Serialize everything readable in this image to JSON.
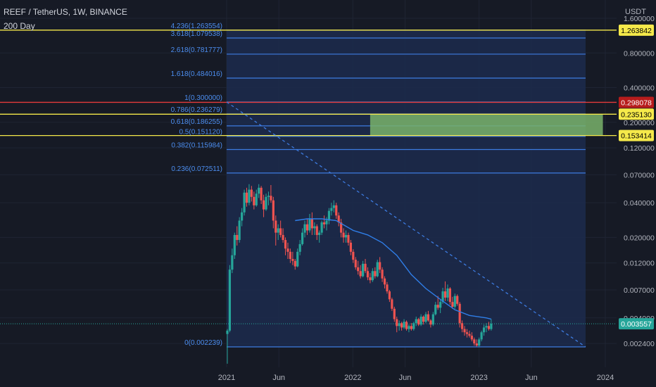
{
  "header": {
    "symbol_line": "REEF / TetherUS, 1W, BINANCE",
    "indicator_line": "200 Day"
  },
  "colors": {
    "background": "#161a25",
    "up": "#26a69a",
    "down": "#ef5350",
    "ma": "#2f7ee8",
    "fib_line": "#3d7be0",
    "fib_label": "#4c8ef0",
    "fib_fill": "#1c2c4e",
    "yellow": "#f5e94a",
    "red_line": "#e53b3b",
    "zone_fill": "#79b36b",
    "last_price_badge": "#26a69a",
    "axis_text": "#b2b5be"
  },
  "chart_data": {
    "type": "candlestick",
    "pair": "REEF / TetherUS",
    "timeframe": "1W",
    "exchange": "BINANCE",
    "y_scale": "log",
    "y_unit": "USDT",
    "y_ticks": [
      {
        "value": 1.6,
        "label": "1.600000"
      },
      {
        "value": 0.8,
        "label": "0.800000"
      },
      {
        "value": 0.4,
        "label": "0.400000"
      },
      {
        "value": 0.2,
        "label": "0.200000"
      },
      {
        "value": 0.12,
        "label": "0.120000"
      },
      {
        "value": 0.07,
        "label": "0.070000"
      },
      {
        "value": 0.04,
        "label": "0.040000"
      },
      {
        "value": 0.02,
        "label": "0.020000"
      },
      {
        "value": 0.012,
        "label": "0.012000"
      },
      {
        "value": 0.007,
        "label": "0.007000"
      },
      {
        "value": 0.004,
        "label": "0.004000"
      },
      {
        "value": 0.0024,
        "label": "0.002400"
      }
    ],
    "x_ticks": [
      {
        "date": "2021-01-01",
        "label": "2021"
      },
      {
        "date": "2021-06-01",
        "label": "Jun"
      },
      {
        "date": "2022-01-01",
        "label": "2022"
      },
      {
        "date": "2022-06-01",
        "label": "Jun"
      },
      {
        "date": "2023-01-01",
        "label": "2023"
      },
      {
        "date": "2023-06-01",
        "label": "Jun"
      },
      {
        "date": "2024-01-01",
        "label": "2024"
      }
    ],
    "price_badges": [
      {
        "value": 1.263842,
        "label": "1.263842",
        "style": "yellow"
      },
      {
        "value": 0.298078,
        "label": "0.298078",
        "style": "red"
      },
      {
        "value": 0.23513,
        "label": "0.235130",
        "style": "yellow"
      },
      {
        "value": 0.153414,
        "label": "0.153414",
        "style": "yellow"
      },
      {
        "value": 0.003557,
        "label": "0.003557",
        "style": "last"
      }
    ],
    "fibonacci": {
      "start_date": "2021-01-01",
      "end_date": "2023-11-05",
      "levels": [
        {
          "ratio": 4.236,
          "value": 1.263554,
          "label": "4.236(1.263554)"
        },
        {
          "ratio": 3.618,
          "value": 1.079538,
          "label": "3.618(1.079538)"
        },
        {
          "ratio": 2.618,
          "value": 0.781777,
          "label": "2.618(0.781777)"
        },
        {
          "ratio": 1.618,
          "value": 0.484016,
          "label": "1.618(0.484016)"
        },
        {
          "ratio": 1,
          "value": 0.3,
          "label": "1(0.300000)"
        },
        {
          "ratio": 0.786,
          "value": 0.236279,
          "label": "0.786(0.236279)"
        },
        {
          "ratio": 0.618,
          "value": 0.186255,
          "label": "0.618(0.186255)"
        },
        {
          "ratio": 0.5,
          "value": 0.15112,
          "label": "0.5(0.151120)"
        },
        {
          "ratio": 0.382,
          "value": 0.115984,
          "label": "0.382(0.115984)"
        },
        {
          "ratio": 0.236,
          "value": 0.072511,
          "label": "0.236(0.072511)"
        },
        {
          "ratio": 0,
          "value": 0.002239,
          "label": "0(0.002239)"
        }
      ]
    },
    "horizontal_lines": [
      {
        "value": 1.263842,
        "color": "yellow"
      },
      {
        "value": 0.298078,
        "color": "red"
      },
      {
        "value": 0.23513,
        "color": "yellow"
      },
      {
        "value": 0.153414,
        "color": "yellow"
      }
    ],
    "zone": {
      "start_date": "2022-02-20",
      "end_date": "2023-12-25",
      "top": 0.23513,
      "bottom": 0.153414
    },
    "trendline": {
      "start_date": "2021-01-01",
      "start_value": 0.3,
      "end_date": "2023-11-05",
      "end_value": 0.002239
    },
    "last_price": 0.003557,
    "moving_average": {
      "name": "200 Day",
      "points": [
        {
          "date": "2021-07-18",
          "value": 0.028
        },
        {
          "date": "2021-08-22",
          "value": 0.029
        },
        {
          "date": "2021-10-03",
          "value": 0.029
        },
        {
          "date": "2021-11-14",
          "value": 0.028
        },
        {
          "date": "2022-01-02",
          "value": 0.023
        },
        {
          "date": "2022-02-13",
          "value": 0.021
        },
        {
          "date": "2022-03-27",
          "value": 0.018
        },
        {
          "date": "2022-05-08",
          "value": 0.014
        },
        {
          "date": "2022-06-19",
          "value": 0.0095
        },
        {
          "date": "2022-07-31",
          "value": 0.0072
        },
        {
          "date": "2022-09-11",
          "value": 0.0058
        },
        {
          "date": "2022-10-23",
          "value": 0.0047
        },
        {
          "date": "2022-12-04",
          "value": 0.0042
        },
        {
          "date": "2023-01-22",
          "value": 0.004
        },
        {
          "date": "2023-02-05",
          "value": 0.0039
        }
      ]
    },
    "candles": [
      {
        "date": "2021-01-03",
        "o": 0.0029,
        "h": 0.0032,
        "l": 0.0016,
        "c": 0.0031
      },
      {
        "date": "2021-01-10",
        "o": 0.0031,
        "h": 0.0115,
        "l": 0.003,
        "c": 0.0105
      },
      {
        "date": "2021-01-17",
        "o": 0.0105,
        "h": 0.016,
        "l": 0.0098,
        "c": 0.014
      },
      {
        "date": "2021-01-24",
        "o": 0.014,
        "h": 0.022,
        "l": 0.013,
        "c": 0.021
      },
      {
        "date": "2021-01-31",
        "o": 0.021,
        "h": 0.025,
        "l": 0.017,
        "c": 0.019
      },
      {
        "date": "2021-02-07",
        "o": 0.019,
        "h": 0.03,
        "l": 0.018,
        "c": 0.028
      },
      {
        "date": "2021-02-14",
        "o": 0.028,
        "h": 0.036,
        "l": 0.025,
        "c": 0.033
      },
      {
        "date": "2021-02-21",
        "o": 0.033,
        "h": 0.052,
        "l": 0.031,
        "c": 0.049
      },
      {
        "date": "2021-02-28",
        "o": 0.049,
        "h": 0.054,
        "l": 0.037,
        "c": 0.04
      },
      {
        "date": "2021-03-07",
        "o": 0.04,
        "h": 0.058,
        "l": 0.038,
        "c": 0.052
      },
      {
        "date": "2021-03-14",
        "o": 0.052,
        "h": 0.056,
        "l": 0.041,
        "c": 0.045
      },
      {
        "date": "2021-03-21",
        "o": 0.045,
        "h": 0.05,
        "l": 0.035,
        "c": 0.038
      },
      {
        "date": "2021-03-28",
        "o": 0.038,
        "h": 0.052,
        "l": 0.037,
        "c": 0.048
      },
      {
        "date": "2021-04-04",
        "o": 0.048,
        "h": 0.058,
        "l": 0.044,
        "c": 0.054
      },
      {
        "date": "2021-04-11",
        "o": 0.054,
        "h": 0.056,
        "l": 0.039,
        "c": 0.042
      },
      {
        "date": "2021-04-18",
        "o": 0.042,
        "h": 0.047,
        "l": 0.03,
        "c": 0.035
      },
      {
        "date": "2021-04-25",
        "o": 0.035,
        "h": 0.048,
        "l": 0.034,
        "c": 0.045
      },
      {
        "date": "2021-05-02",
        "o": 0.045,
        "h": 0.05,
        "l": 0.038,
        "c": 0.046
      },
      {
        "date": "2021-05-09",
        "o": 0.046,
        "h": 0.057,
        "l": 0.04,
        "c": 0.042
      },
      {
        "date": "2021-05-16",
        "o": 0.042,
        "h": 0.045,
        "l": 0.024,
        "c": 0.028
      },
      {
        "date": "2021-05-23",
        "o": 0.028,
        "h": 0.031,
        "l": 0.017,
        "c": 0.022
      },
      {
        "date": "2021-05-30",
        "o": 0.022,
        "h": 0.026,
        "l": 0.019,
        "c": 0.024
      },
      {
        "date": "2021-06-06",
        "o": 0.024,
        "h": 0.028,
        "l": 0.02,
        "c": 0.021
      },
      {
        "date": "2021-06-13",
        "o": 0.021,
        "h": 0.024,
        "l": 0.018,
        "c": 0.019
      },
      {
        "date": "2021-06-20",
        "o": 0.019,
        "h": 0.02,
        "l": 0.014,
        "c": 0.016
      },
      {
        "date": "2021-06-27",
        "o": 0.016,
        "h": 0.018,
        "l": 0.013,
        "c": 0.015
      },
      {
        "date": "2021-07-04",
        "o": 0.015,
        "h": 0.016,
        "l": 0.012,
        "c": 0.013
      },
      {
        "date": "2021-07-11",
        "o": 0.013,
        "h": 0.015,
        "l": 0.0115,
        "c": 0.0125
      },
      {
        "date": "2021-07-18",
        "o": 0.0125,
        "h": 0.013,
        "l": 0.0105,
        "c": 0.0112
      },
      {
        "date": "2021-07-25",
        "o": 0.0112,
        "h": 0.016,
        "l": 0.011,
        "c": 0.015
      },
      {
        "date": "2021-08-01",
        "o": 0.015,
        "h": 0.019,
        "l": 0.014,
        "c": 0.0175
      },
      {
        "date": "2021-08-08",
        "o": 0.0175,
        "h": 0.024,
        "l": 0.017,
        "c": 0.022
      },
      {
        "date": "2021-08-15",
        "o": 0.022,
        "h": 0.028,
        "l": 0.02,
        "c": 0.026
      },
      {
        "date": "2021-08-22",
        "o": 0.026,
        "h": 0.029,
        "l": 0.021,
        "c": 0.023
      },
      {
        "date": "2021-08-29",
        "o": 0.023,
        "h": 0.032,
        "l": 0.022,
        "c": 0.029
      },
      {
        "date": "2021-09-05",
        "o": 0.029,
        "h": 0.033,
        "l": 0.021,
        "c": 0.024
      },
      {
        "date": "2021-09-12",
        "o": 0.024,
        "h": 0.027,
        "l": 0.021,
        "c": 0.025
      },
      {
        "date": "2021-09-19",
        "o": 0.025,
        "h": 0.026,
        "l": 0.019,
        "c": 0.021
      },
      {
        "date": "2021-09-26",
        "o": 0.021,
        "h": 0.023,
        "l": 0.018,
        "c": 0.022
      },
      {
        "date": "2021-10-03",
        "o": 0.022,
        "h": 0.028,
        "l": 0.021,
        "c": 0.027
      },
      {
        "date": "2021-10-10",
        "o": 0.027,
        "h": 0.031,
        "l": 0.024,
        "c": 0.026
      },
      {
        "date": "2021-10-17",
        "o": 0.026,
        "h": 0.03,
        "l": 0.023,
        "c": 0.028
      },
      {
        "date": "2021-10-24",
        "o": 0.028,
        "h": 0.036,
        "l": 0.026,
        "c": 0.034
      },
      {
        "date": "2021-10-31",
        "o": 0.034,
        "h": 0.04,
        "l": 0.031,
        "c": 0.036
      },
      {
        "date": "2021-11-07",
        "o": 0.036,
        "h": 0.042,
        "l": 0.033,
        "c": 0.038
      },
      {
        "date": "2021-11-14",
        "o": 0.038,
        "h": 0.04,
        "l": 0.029,
        "c": 0.031
      },
      {
        "date": "2021-11-21",
        "o": 0.031,
        "h": 0.033,
        "l": 0.025,
        "c": 0.027
      },
      {
        "date": "2021-11-28",
        "o": 0.027,
        "h": 0.029,
        "l": 0.02,
        "c": 0.022
      },
      {
        "date": "2021-12-05",
        "o": 0.022,
        "h": 0.024,
        "l": 0.018,
        "c": 0.02
      },
      {
        "date": "2021-12-12",
        "o": 0.02,
        "h": 0.023,
        "l": 0.018,
        "c": 0.021
      },
      {
        "date": "2021-12-19",
        "o": 0.021,
        "h": 0.022,
        "l": 0.017,
        "c": 0.018
      },
      {
        "date": "2021-12-26",
        "o": 0.018,
        "h": 0.019,
        "l": 0.014,
        "c": 0.015
      },
      {
        "date": "2022-01-02",
        "o": 0.015,
        "h": 0.0158,
        "l": 0.012,
        "c": 0.0128
      },
      {
        "date": "2022-01-09",
        "o": 0.0128,
        "h": 0.0135,
        "l": 0.0105,
        "c": 0.011
      },
      {
        "date": "2022-01-16",
        "o": 0.011,
        "h": 0.0125,
        "l": 0.0095,
        "c": 0.0102
      },
      {
        "date": "2022-01-23",
        "o": 0.0102,
        "h": 0.0115,
        "l": 0.0088,
        "c": 0.0092
      },
      {
        "date": "2022-01-30",
        "o": 0.0092,
        "h": 0.0125,
        "l": 0.009,
        "c": 0.0118
      },
      {
        "date": "2022-02-06",
        "o": 0.0118,
        "h": 0.013,
        "l": 0.0098,
        "c": 0.0102
      },
      {
        "date": "2022-02-13",
        "o": 0.0102,
        "h": 0.011,
        "l": 0.0085,
        "c": 0.009
      },
      {
        "date": "2022-02-20",
        "o": 0.009,
        "h": 0.0098,
        "l": 0.008,
        "c": 0.0085
      },
      {
        "date": "2022-02-27",
        "o": 0.0085,
        "h": 0.0108,
        "l": 0.0082,
        "c": 0.0102
      },
      {
        "date": "2022-03-06",
        "o": 0.0102,
        "h": 0.011,
        "l": 0.0088,
        "c": 0.0092
      },
      {
        "date": "2022-03-13",
        "o": 0.0092,
        "h": 0.0128,
        "l": 0.009,
        "c": 0.0122
      },
      {
        "date": "2022-03-20",
        "o": 0.0122,
        "h": 0.0135,
        "l": 0.0098,
        "c": 0.0105
      },
      {
        "date": "2022-03-27",
        "o": 0.0105,
        "h": 0.011,
        "l": 0.0082,
        "c": 0.0088
      },
      {
        "date": "2022-04-03",
        "o": 0.0088,
        "h": 0.0092,
        "l": 0.0072,
        "c": 0.0078
      },
      {
        "date": "2022-04-10",
        "o": 0.0078,
        "h": 0.0082,
        "l": 0.0065,
        "c": 0.0068
      },
      {
        "date": "2022-04-17",
        "o": 0.0068,
        "h": 0.007,
        "l": 0.0055,
        "c": 0.0058
      },
      {
        "date": "2022-04-24",
        "o": 0.0058,
        "h": 0.006,
        "l": 0.0046,
        "c": 0.0048
      },
      {
        "date": "2022-05-01",
        "o": 0.0048,
        "h": 0.005,
        "l": 0.0037,
        "c": 0.0039
      },
      {
        "date": "2022-05-08",
        "o": 0.0039,
        "h": 0.0041,
        "l": 0.003,
        "c": 0.0034
      },
      {
        "date": "2022-05-15",
        "o": 0.0034,
        "h": 0.0038,
        "l": 0.0031,
        "c": 0.0036
      },
      {
        "date": "2022-05-22",
        "o": 0.0036,
        "h": 0.0037,
        "l": 0.0031,
        "c": 0.0033
      },
      {
        "date": "2022-05-29",
        "o": 0.0033,
        "h": 0.0039,
        "l": 0.0032,
        "c": 0.0037
      },
      {
        "date": "2022-06-05",
        "o": 0.0037,
        "h": 0.0038,
        "l": 0.0031,
        "c": 0.0032
      },
      {
        "date": "2022-06-12",
        "o": 0.0032,
        "h": 0.0035,
        "l": 0.003,
        "c": 0.0034
      },
      {
        "date": "2022-06-19",
        "o": 0.0034,
        "h": 0.0036,
        "l": 0.0031,
        "c": 0.0032
      },
      {
        "date": "2022-06-26",
        "o": 0.0032,
        "h": 0.0037,
        "l": 0.0031,
        "c": 0.0036
      },
      {
        "date": "2022-07-03",
        "o": 0.0036,
        "h": 0.0041,
        "l": 0.0034,
        "c": 0.0039
      },
      {
        "date": "2022-07-10",
        "o": 0.0039,
        "h": 0.004,
        "l": 0.0034,
        "c": 0.0035
      },
      {
        "date": "2022-07-17",
        "o": 0.0035,
        "h": 0.0043,
        "l": 0.0034,
        "c": 0.0041
      },
      {
        "date": "2022-07-24",
        "o": 0.0041,
        "h": 0.0042,
        "l": 0.0035,
        "c": 0.0037
      },
      {
        "date": "2022-07-31",
        "o": 0.0037,
        "h": 0.0045,
        "l": 0.0036,
        "c": 0.0043
      },
      {
        "date": "2022-08-07",
        "o": 0.0043,
        "h": 0.0046,
        "l": 0.0037,
        "c": 0.0038
      },
      {
        "date": "2022-08-14",
        "o": 0.0038,
        "h": 0.0039,
        "l": 0.0033,
        "c": 0.0035
      },
      {
        "date": "2022-08-21",
        "o": 0.0035,
        "h": 0.0045,
        "l": 0.0034,
        "c": 0.0043
      },
      {
        "date": "2022-08-28",
        "o": 0.0043,
        "h": 0.0055,
        "l": 0.0042,
        "c": 0.0052
      },
      {
        "date": "2022-09-04",
        "o": 0.0052,
        "h": 0.0062,
        "l": 0.0047,
        "c": 0.0049
      },
      {
        "date": "2022-09-11",
        "o": 0.0049,
        "h": 0.0058,
        "l": 0.0044,
        "c": 0.0055
      },
      {
        "date": "2022-09-18",
        "o": 0.0055,
        "h": 0.0073,
        "l": 0.0053,
        "c": 0.0068
      },
      {
        "date": "2022-09-25",
        "o": 0.0068,
        "h": 0.0083,
        "l": 0.0056,
        "c": 0.006
      },
      {
        "date": "2022-10-02",
        "o": 0.006,
        "h": 0.0078,
        "l": 0.0056,
        "c": 0.0072
      },
      {
        "date": "2022-10-09",
        "o": 0.0072,
        "h": 0.0074,
        "l": 0.0052,
        "c": 0.0055
      },
      {
        "date": "2022-10-16",
        "o": 0.0055,
        "h": 0.0061,
        "l": 0.0048,
        "c": 0.005
      },
      {
        "date": "2022-10-23",
        "o": 0.005,
        "h": 0.0065,
        "l": 0.0048,
        "c": 0.0062
      },
      {
        "date": "2022-10-30",
        "o": 0.0062,
        "h": 0.0064,
        "l": 0.0051,
        "c": 0.0053
      },
      {
        "date": "2022-11-06",
        "o": 0.0053,
        "h": 0.0055,
        "l": 0.0033,
        "c": 0.0036
      },
      {
        "date": "2022-11-13",
        "o": 0.0036,
        "h": 0.0038,
        "l": 0.003,
        "c": 0.0032
      },
      {
        "date": "2022-11-20",
        "o": 0.0032,
        "h": 0.0034,
        "l": 0.0028,
        "c": 0.003
      },
      {
        "date": "2022-11-27",
        "o": 0.003,
        "h": 0.0032,
        "l": 0.0027,
        "c": 0.0029
      },
      {
        "date": "2022-12-04",
        "o": 0.0029,
        "h": 0.0031,
        "l": 0.0027,
        "c": 0.0028
      },
      {
        "date": "2022-12-11",
        "o": 0.0028,
        "h": 0.003,
        "l": 0.0025,
        "c": 0.0026
      },
      {
        "date": "2022-12-18",
        "o": 0.0026,
        "h": 0.0027,
        "l": 0.0023,
        "c": 0.0024
      },
      {
        "date": "2022-12-25",
        "o": 0.0024,
        "h": 0.0026,
        "l": 0.00225,
        "c": 0.0023
      },
      {
        "date": "2023-01-01",
        "o": 0.0023,
        "h": 0.0027,
        "l": 0.00224,
        "c": 0.0026
      },
      {
        "date": "2023-01-08",
        "o": 0.0026,
        "h": 0.0031,
        "l": 0.0025,
        "c": 0.003
      },
      {
        "date": "2023-01-15",
        "o": 0.003,
        "h": 0.0035,
        "l": 0.0028,
        "c": 0.0033
      },
      {
        "date": "2023-01-22",
        "o": 0.0033,
        "h": 0.0036,
        "l": 0.003,
        "c": 0.0034
      },
      {
        "date": "2023-01-29",
        "o": 0.0034,
        "h": 0.0037,
        "l": 0.0031,
        "c": 0.0032
      },
      {
        "date": "2023-02-05",
        "o": 0.0032,
        "h": 0.0039,
        "l": 0.0031,
        "c": 0.00356
      }
    ]
  }
}
